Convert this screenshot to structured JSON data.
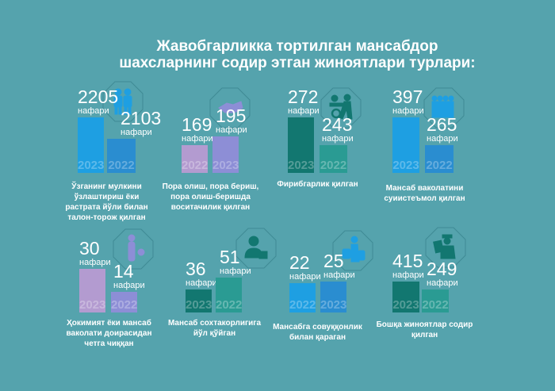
{
  "title_line1": "Жавобгарликка тортилган мансабдор",
  "title_line2": "шахсларнинг содир этган жиноятлари турлари:",
  "colors": {
    "background": "#55a3ad",
    "blue": "#1e9fe2",
    "blue_dark": "#2a8dd0",
    "teal_dark": "#127770",
    "teal": "#2a9b93",
    "lilac": "#b39bd0",
    "violet": "#8d8ed6"
  },
  "chart_data": [
    {
      "type": "bar",
      "title": "Ўзганинг мулкини ўзлаштириш ёки растрата йўли билан талон-торож қилган",
      "icon": "people-icon",
      "unit": "нафари",
      "categories": [
        "2023",
        "2022"
      ],
      "values": [
        2205,
        2103
      ]
    },
    {
      "type": "bar",
      "title": "Пора олиш, пора бериш, пора олиш-беришда воситачилик қилган",
      "icon": "handshake-icon",
      "unit": "нафари",
      "categories": [
        "2022",
        "2023"
      ],
      "values": [
        169,
        195
      ]
    },
    {
      "type": "bar",
      "title": "Фирибгарлик қилган",
      "icon": "fraud-exchange-icon",
      "unit": "нафари",
      "categories": [
        "2023",
        "2022"
      ],
      "values": [
        272,
        243
      ]
    },
    {
      "type": "bar",
      "title": "Мансаб ваколатини суиистеъмол қилган",
      "icon": "crowd-icon",
      "unit": "нафари",
      "categories": [
        "2023",
        "2022"
      ],
      "values": [
        397,
        265
      ]
    },
    {
      "type": "bar",
      "title": "Ҳокимият ёки мансаб ваколати доирасидан четга чиққан",
      "icon": "person-icon",
      "unit": "нафари",
      "categories": [
        "2023",
        "2022"
      ],
      "values": [
        30,
        14
      ]
    },
    {
      "type": "bar",
      "title": "Мансаб сохтакорлигига йўл қўйган",
      "icon": "user-lock-icon",
      "unit": "нафари",
      "categories": [
        "2023",
        "2022"
      ],
      "values": [
        36,
        51
      ]
    },
    {
      "type": "bar",
      "title": "Мансабга совуққонлик билан қараган",
      "icon": "person-luggage-icon",
      "unit": "нафари",
      "categories": [
        "2022",
        "2023"
      ],
      "values": [
        22,
        25
      ]
    },
    {
      "type": "bar",
      "title": "Бошқа жиноятлар содир қилган",
      "icon": "officer-document-icon",
      "unit": "нафари",
      "categories": [
        "2023",
        "2022"
      ],
      "values": [
        415,
        249
      ]
    }
  ]
}
